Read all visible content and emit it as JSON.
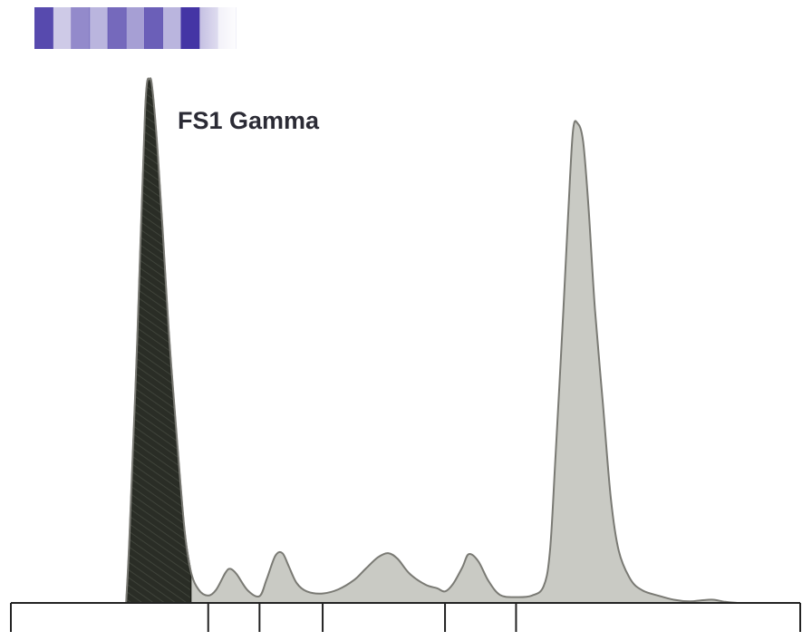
{
  "chart_data": {
    "type": "area",
    "title": "",
    "xlabel": "",
    "ylabel": "",
    "annotation": "FS1 Gamma",
    "grid": false,
    "legend": "none",
    "xlim": [
      0,
      100
    ],
    "ylim": [
      0,
      100
    ],
    "x_ticks": [
      0,
      25,
      31.5,
      39.5,
      55,
      64,
      100
    ],
    "colors": {
      "highlight_fill": "#2a2d26",
      "profile_fill": "#c9cac4",
      "outline": "#7a7a74",
      "axis": "#222222",
      "band": "#3a2aa0"
    },
    "profile": {
      "x": [
        14.6,
        15.0,
        16.0,
        17.0,
        17.6,
        18.0,
        18.6,
        19.2,
        20.0,
        21.0,
        22.0,
        22.8,
        23.8,
        25.0,
        26.0,
        27.2,
        27.8,
        28.6,
        30.0,
        31.5,
        32.4,
        33.5,
        34.4,
        35.2,
        36.2,
        37.5,
        39.5,
        41.5,
        43.5,
        45.0,
        46.5,
        47.8,
        49.0,
        50.5,
        52.5,
        54.0,
        55.0,
        56.0,
        57.2,
        58.0,
        59.2,
        60.5,
        62.0,
        64.0,
        66.0,
        67.5,
        68.3,
        69.0,
        70.0,
        70.6,
        71.2,
        71.8,
        72.5,
        73.2,
        74.0,
        75.0,
        76.0,
        77.0,
        78.5,
        80.0,
        82.0,
        84.0,
        86.0,
        87.5,
        89.0,
        90.5,
        92.0
      ],
      "y": [
        0,
        12,
        50,
        94,
        100,
        97,
        86,
        72,
        52,
        32,
        14,
        6,
        2.5,
        1.4,
        2.5,
        5.8,
        6.5,
        5.5,
        2.4,
        1.3,
        4.5,
        9.0,
        9.5,
        7.0,
        3.8,
        2.2,
        1.8,
        2.6,
        4.4,
        6.6,
        8.7,
        9.5,
        8.4,
        5.6,
        3.5,
        2.8,
        2.2,
        3.6,
        6.8,
        9.3,
        8.0,
        4.2,
        1.5,
        1.1,
        1.4,
        3.2,
        10,
        28,
        56,
        74,
        90,
        91.5,
        88,
        75,
        56,
        38,
        20,
        10,
        4.5,
        2.4,
        1.4,
        0.6,
        0.3,
        0.5,
        0.6,
        0.2,
        0
      ],
      "highlight_end_x": 22.8
    },
    "gel_band": {
      "stripes": [
        0.85,
        0.25,
        0.55,
        0.35,
        0.7,
        0.45,
        0.75,
        0.35,
        0.95,
        0.3,
        0.12
      ]
    }
  }
}
